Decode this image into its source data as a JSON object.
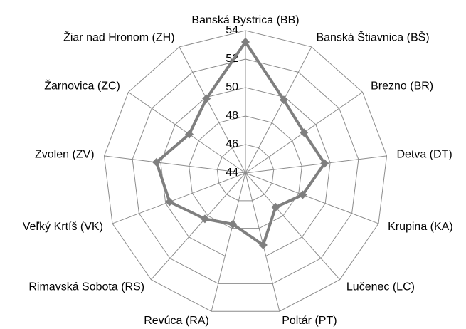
{
  "chart_data": {
    "type": "radar",
    "categories": [
      "Banská Bystrica (BB)",
      "Banská Štiavnica (BŠ)",
      "Brezno (BR)",
      "Detva (DT)",
      "Krupina (KA)",
      "Lučenec (LC)",
      "Poltár (PT)",
      "Revúca (RA)",
      "Rimavská Sobota (RS)",
      "Veľký Krtíš (VK)",
      "Zvolen (ZV)",
      "Žarnovica (ZC)",
      "Žiar nad Hronom (ZH)"
    ],
    "series": [
      {
        "color": "#7f7f7f",
        "values": [
          53.2,
          49.8,
          49.0,
          49.6,
          48.3,
          47.2,
          49.2,
          47.7,
          48.3,
          49.7,
          50.3,
          48.8,
          49.9
        ]
      }
    ],
    "ylim": [
      44,
      54
    ],
    "yticks": [
      44,
      46,
      48,
      50,
      52,
      54
    ],
    "grid": true
  }
}
